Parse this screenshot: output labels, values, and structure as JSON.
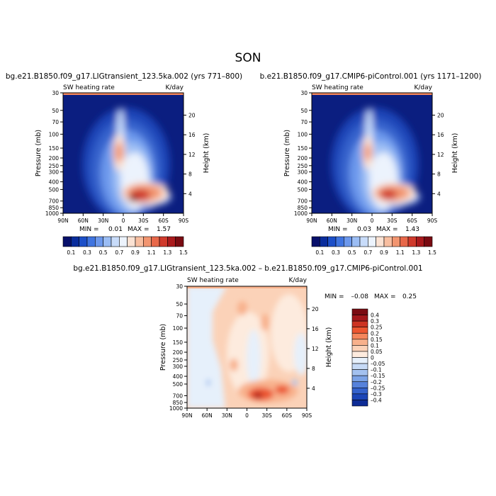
{
  "figure_title": "SON",
  "chart_data": [
    {
      "type": "heatmap",
      "title": "bg.e21.B1850.f09_g17.LIGtransient_123.5ka.002 (yrs 771–800)",
      "left_label": "SW heating rate",
      "right_label": "K/day",
      "xlabel": "",
      "ylabel": "Pressure (mb)",
      "y2label": "Height (km)",
      "x_ticks": [
        "90N",
        "60N",
        "30N",
        "0",
        "30S",
        "60S",
        "90S"
      ],
      "y_ticks": [
        "30",
        "50",
        "70",
        "100",
        "150",
        "200",
        "250",
        "300",
        "400",
        "500",
        "700",
        "850",
        "1000"
      ],
      "y2_ticks": [
        "20",
        "16",
        "12",
        "8",
        "4"
      ],
      "min_label": "MIN =",
      "min_value": "0.01",
      "max_label": "MAX =",
      "max_value": "1.57",
      "colorbar_labels": [
        "0.1",
        "0.3",
        "0.5",
        "0.7",
        "0.9",
        "1.1",
        "1.3",
        "1.5"
      ]
    },
    {
      "type": "heatmap",
      "title": "b.e21.B1850.f09_g17.CMIP6-piControl.001 (yrs 1171–1200)",
      "left_label": "SW heating rate",
      "right_label": "K/day",
      "xlabel": "",
      "ylabel": "Pressure (mb)",
      "y2label": "Height (km)",
      "x_ticks": [
        "90N",
        "60N",
        "30N",
        "0",
        "30S",
        "60S",
        "90S"
      ],
      "y_ticks": [
        "30",
        "50",
        "70",
        "100",
        "150",
        "200",
        "250",
        "300",
        "400",
        "500",
        "700",
        "850",
        "1000"
      ],
      "y2_ticks": [
        "20",
        "16",
        "12",
        "8",
        "4"
      ],
      "min_label": "MIN =",
      "min_value": "0.03",
      "max_label": "MAX =",
      "max_value": "1.43",
      "colorbar_labels": [
        "0.1",
        "0.3",
        "0.5",
        "0.7",
        "0.9",
        "1.1",
        "1.3",
        "1.5"
      ]
    },
    {
      "type": "heatmap",
      "title": "bg.e21.B1850.f09_g17.LIGtransient_123.5ka.002 – b.e21.B1850.f09_g17.CMIP6-piControl.001",
      "left_label": "SW heating rate",
      "right_label": "K/day",
      "xlabel": "",
      "ylabel": "Pressure (mb)",
      "y2label": "Height (km)",
      "x_ticks": [
        "90N",
        "60N",
        "30N",
        "0",
        "30S",
        "60S",
        "90S"
      ],
      "y_ticks": [
        "30",
        "50",
        "70",
        "100",
        "150",
        "200",
        "250",
        "300",
        "400",
        "500",
        "700",
        "850",
        "1000"
      ],
      "y2_ticks": [
        "20",
        "16",
        "12",
        "8",
        "4"
      ],
      "min_label": "MIN =",
      "min_value": "–0.08",
      "max_label": "MAX =",
      "max_value": "0.25",
      "colorbar_labels": [
        "0.4",
        "0.3",
        "0.25",
        "0.2",
        "0.15",
        "0.1",
        "0.05",
        "0",
        "–0.05",
        "–0.1",
        "–0.15",
        "–0.2",
        "–0.25",
        "–0.3",
        "–0.4"
      ]
    }
  ],
  "colors": {
    "seq_scale": [
      "#08106b",
      "#0a2d9c",
      "#1c4fc8",
      "#3f74e0",
      "#6c98ec",
      "#9bbdf4",
      "#c8dcfa",
      "#ecf3fd",
      "#fbe2d3",
      "#f8bea0",
      "#f29570",
      "#e8684a",
      "#d03a2c",
      "#aa1a1d",
      "#7a0b12"
    ],
    "diff_scale": [
      "#7a0b12",
      "#a3171b",
      "#cd3322",
      "#ec5630",
      "#f4865c",
      "#f8b18c",
      "#fbd2b8",
      "#fdebde",
      "#e6f0fb",
      "#c6daf6",
      "#a3c1ef",
      "#7ca3e6",
      "#5682db",
      "#3462cc",
      "#1b45b7",
      "#0e2c96"
    ]
  }
}
